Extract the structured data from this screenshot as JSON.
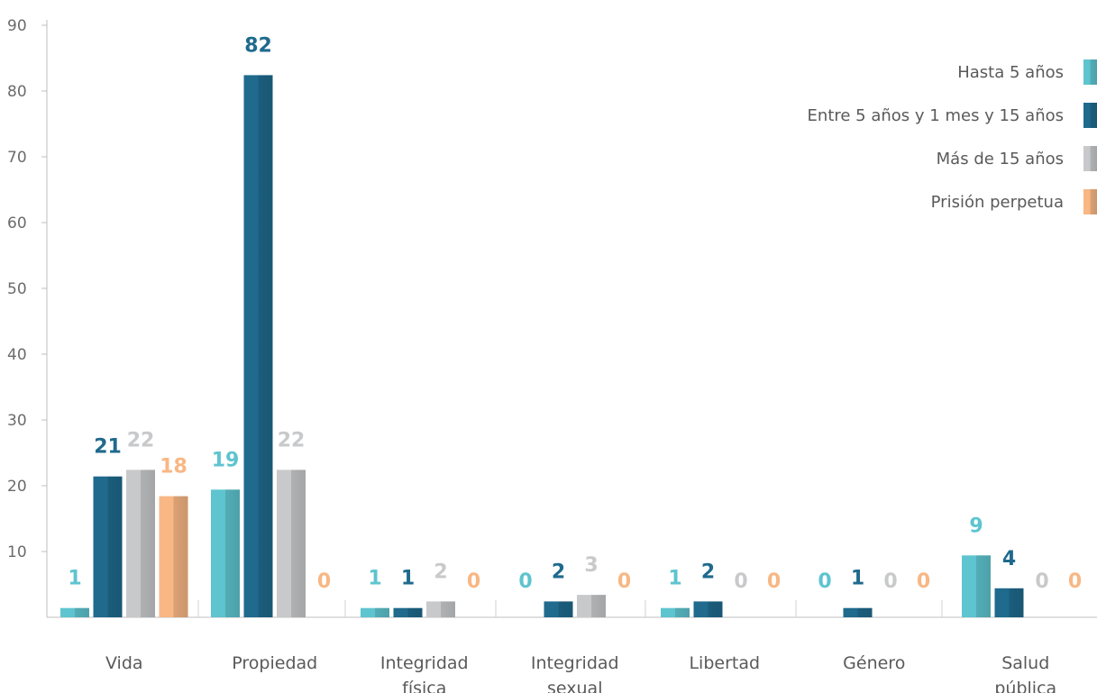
{
  "chart_data": {
    "type": "bar",
    "ylim": [
      0,
      90
    ],
    "yticks": [
      10,
      20,
      30,
      40,
      50,
      60,
      70,
      80,
      90
    ],
    "grid": false,
    "legend_position": "top-right",
    "categories": [
      [
        "Vida"
      ],
      [
        "Propiedad"
      ],
      [
        "Integridad",
        "física"
      ],
      [
        "Integridad",
        "sexual"
      ],
      [
        "Libertad"
      ],
      [
        "Género"
      ],
      [
        "Salud",
        "pública"
      ]
    ],
    "series": [
      {
        "name": "Hasta 5 años",
        "color": "#5ec4cf",
        "values": [
          1,
          19,
          1,
          0,
          1,
          0,
          9
        ]
      },
      {
        "name": "Entre 5 años y 1 mes y 15 años",
        "color": "#1f6a8d",
        "values": [
          21,
          82,
          1,
          2,
          2,
          1,
          4
        ]
      },
      {
        "name": "Más de 15 años",
        "color": "#c8c9cb",
        "values": [
          22,
          22,
          2,
          3,
          0,
          0,
          0
        ]
      },
      {
        "name": "Prisión perpetua",
        "color": "#f8b784",
        "values": [
          18,
          0,
          0,
          0,
          0,
          0,
          0
        ]
      }
    ]
  }
}
